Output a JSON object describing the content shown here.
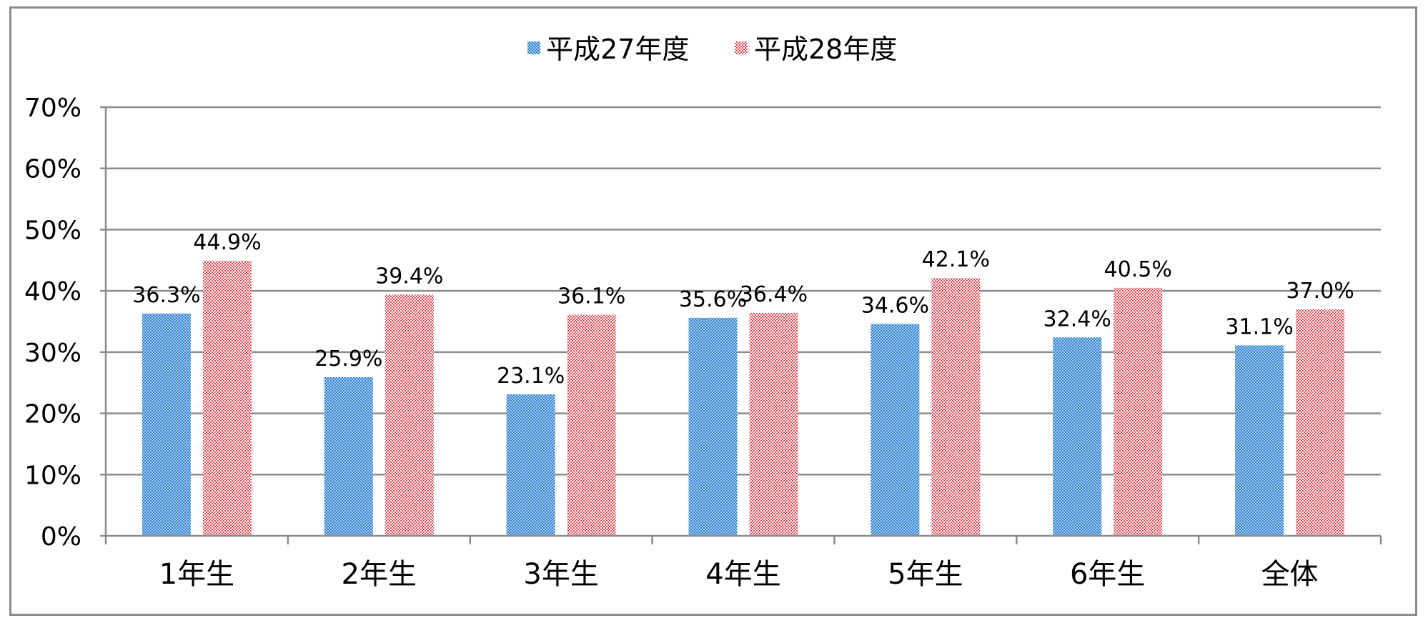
{
  "chart_data": {
    "type": "bar",
    "categories": [
      "1年生",
      "2年生",
      "3年生",
      "4年生",
      "5年生",
      "6年生",
      "全体"
    ],
    "series": [
      {
        "name": "平成27年度",
        "values": [
          36.3,
          25.9,
          23.1,
          35.6,
          34.6,
          32.4,
          31.1
        ],
        "labels": [
          "36.3%",
          "25.9%",
          "23.1%",
          "35.6%",
          "34.6%",
          "32.4%",
          "31.1%"
        ],
        "color": "#2f7fd0"
      },
      {
        "name": "平成28年度",
        "values": [
          44.9,
          39.4,
          36.1,
          36.4,
          42.1,
          40.5,
          37.0
        ],
        "labels": [
          "44.9%",
          "39.4%",
          "36.1%",
          "36.4%",
          "42.1%",
          "40.5%",
          "37.0%"
        ],
        "color": "#e8434f"
      }
    ],
    "yticks": [
      "0%",
      "10%",
      "20%",
      "30%",
      "40%",
      "50%",
      "60%",
      "70%"
    ],
    "ylim": [
      0,
      70
    ],
    "grid": true,
    "legend": "top-center",
    "title": "",
    "xlabel": "",
    "ylabel": ""
  }
}
